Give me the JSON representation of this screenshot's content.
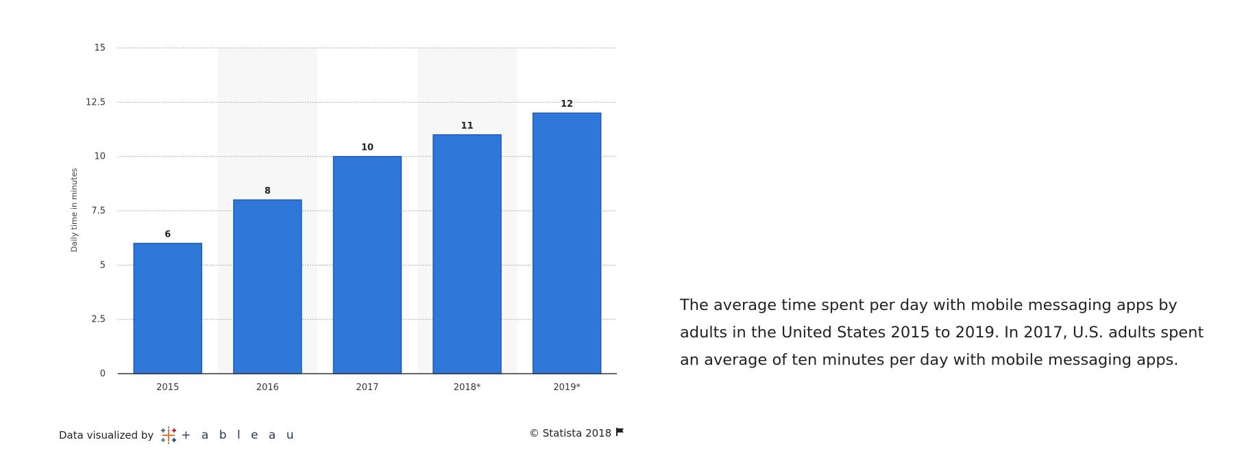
{
  "chart_data": {
    "type": "bar",
    "categories": [
      "2015",
      "2016",
      "2017",
      "2018*",
      "2019*"
    ],
    "values": [
      6,
      8,
      10,
      11,
      12
    ],
    "ylabel": "Daily time in minutes",
    "xlabel": "",
    "ylim": [
      0,
      15
    ],
    "yticks": [
      "0",
      "2.5",
      "5",
      "7.5",
      "10",
      "12.5",
      "15"
    ],
    "grid": true,
    "bar_color": "#2f78d9",
    "bar_edge_color": "#1d5bb5",
    "band_color": "#f7f7f7"
  },
  "description": "The average time spent per day with mobile messaging apps by adults in the United States 2015 to 2019. In 2017, U.S. adults spent an average of ten minutes per day with mobile messaging apps.",
  "footer": {
    "visualized_by": "Data visualized by",
    "tableau_wordmark": "+ a b l e a u",
    "copyright": "© Statista 2018",
    "flag_icon": "flag-icon"
  }
}
